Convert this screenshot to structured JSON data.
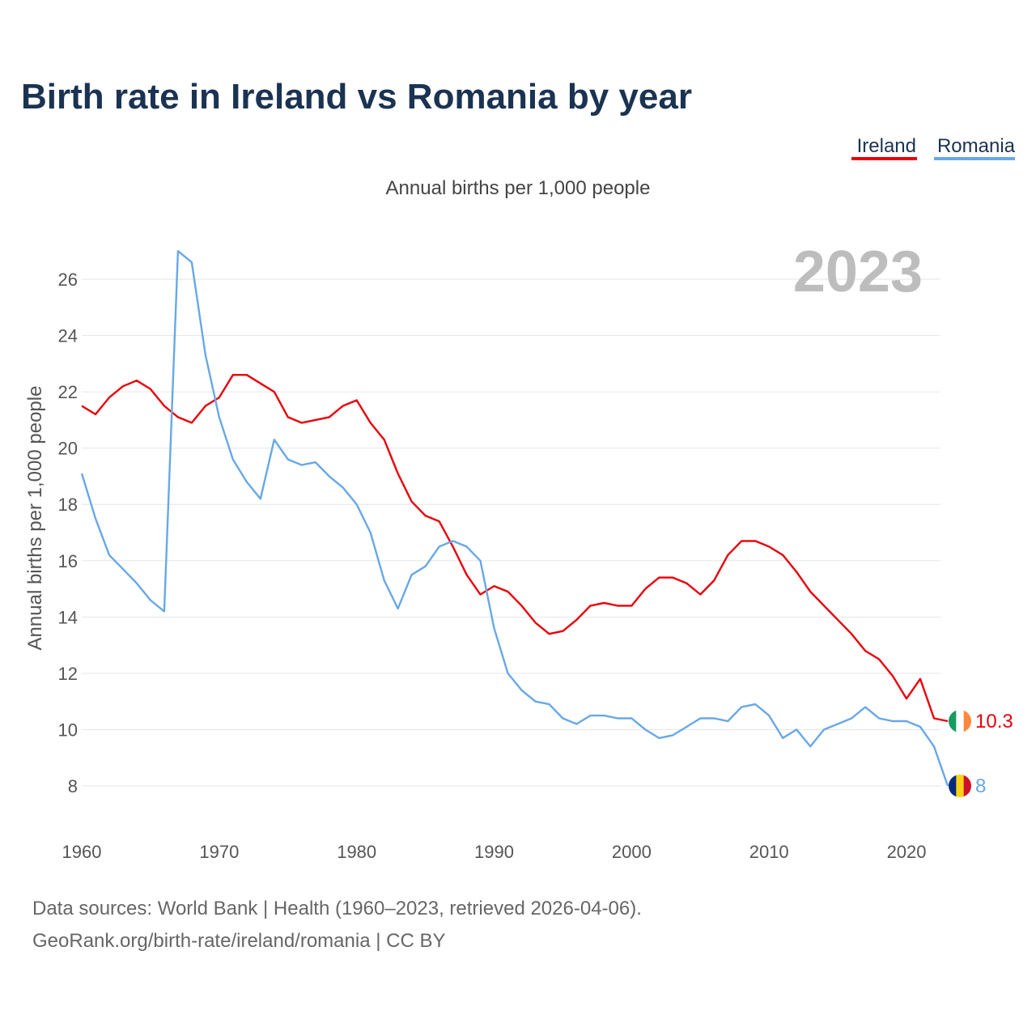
{
  "colors": {
    "title": "#1b3352",
    "ireland": "#e8000b",
    "romania": "#68a8e6",
    "grid": "#e6e6e6",
    "watermark": "#bdbdbd"
  },
  "chart_data": {
    "type": "line",
    "title": "Birth rate in Ireland vs Romania by year",
    "subtitle": "Annual births per 1,000 people",
    "ylabel": "Annual births per 1,000 people",
    "xlabel": "",
    "year_label": "2023",
    "xlim": [
      1960,
      2023
    ],
    "ylim": [
      7,
      27.5
    ],
    "x_ticks": [
      1960,
      1970,
      1980,
      1990,
      2000,
      2010,
      2020
    ],
    "y_ticks": [
      8,
      10,
      12,
      14,
      16,
      18,
      20,
      22,
      24,
      26
    ],
    "x": [
      1960,
      1961,
      1962,
      1963,
      1964,
      1965,
      1966,
      1967,
      1968,
      1969,
      1970,
      1971,
      1972,
      1973,
      1974,
      1975,
      1976,
      1977,
      1978,
      1979,
      1980,
      1981,
      1982,
      1983,
      1984,
      1985,
      1986,
      1987,
      1988,
      1989,
      1990,
      1991,
      1992,
      1993,
      1994,
      1995,
      1996,
      1997,
      1998,
      1999,
      2000,
      2001,
      2002,
      2003,
      2004,
      2005,
      2006,
      2007,
      2008,
      2009,
      2010,
      2011,
      2012,
      2013,
      2014,
      2015,
      2016,
      2017,
      2018,
      2019,
      2020,
      2021,
      2022,
      2023
    ],
    "series": [
      {
        "name": "Ireland",
        "color": "#e8000b",
        "end_label": "10.3",
        "flag": "ireland-flag",
        "values": [
          21.5,
          21.2,
          21.8,
          22.2,
          22.4,
          22.1,
          21.5,
          21.1,
          20.9,
          21.5,
          21.8,
          22.6,
          22.6,
          22.3,
          22.0,
          21.1,
          20.9,
          21.0,
          21.1,
          21.5,
          21.7,
          20.9,
          20.3,
          19.1,
          18.1,
          17.6,
          17.4,
          16.5,
          15.5,
          14.8,
          15.1,
          14.9,
          14.4,
          13.8,
          13.4,
          13.5,
          13.9,
          14.4,
          14.5,
          14.4,
          14.4,
          15.0,
          15.4,
          15.4,
          15.2,
          14.8,
          15.3,
          16.2,
          16.7,
          16.7,
          16.5,
          16.2,
          15.6,
          14.9,
          14.4,
          13.9,
          13.4,
          12.8,
          12.5,
          11.9,
          11.1,
          11.8,
          10.4,
          10.3
        ]
      },
      {
        "name": "Romania",
        "color": "#68a8e6",
        "end_label": "8",
        "flag": "romania-flag",
        "values": [
          19.1,
          17.5,
          16.2,
          15.7,
          15.2,
          14.6,
          14.2,
          27.0,
          26.6,
          23.3,
          21.1,
          19.6,
          18.8,
          18.2,
          20.3,
          19.6,
          19.4,
          19.5,
          19.0,
          18.6,
          18.0,
          17.0,
          15.3,
          14.3,
          15.5,
          15.8,
          16.5,
          16.7,
          16.5,
          16.0,
          13.6,
          12.0,
          11.4,
          11.0,
          10.9,
          10.4,
          10.2,
          10.5,
          10.5,
          10.4,
          10.4,
          10.0,
          9.7,
          9.8,
          10.1,
          10.4,
          10.4,
          10.3,
          10.8,
          10.9,
          10.5,
          9.7,
          10.0,
          9.4,
          10.0,
          10.2,
          10.4,
          10.8,
          10.4,
          10.3,
          10.3,
          10.1,
          9.4,
          8.0
        ]
      }
    ]
  },
  "legend": {
    "items": [
      {
        "label": "Ireland"
      },
      {
        "label": "Romania"
      }
    ]
  },
  "source": {
    "line1": "Data sources: World Bank | Health (1960–2023, retrieved 2026-04-06).",
    "line2": "GeoRank.org/birth-rate/ireland/romania | CC BY"
  }
}
